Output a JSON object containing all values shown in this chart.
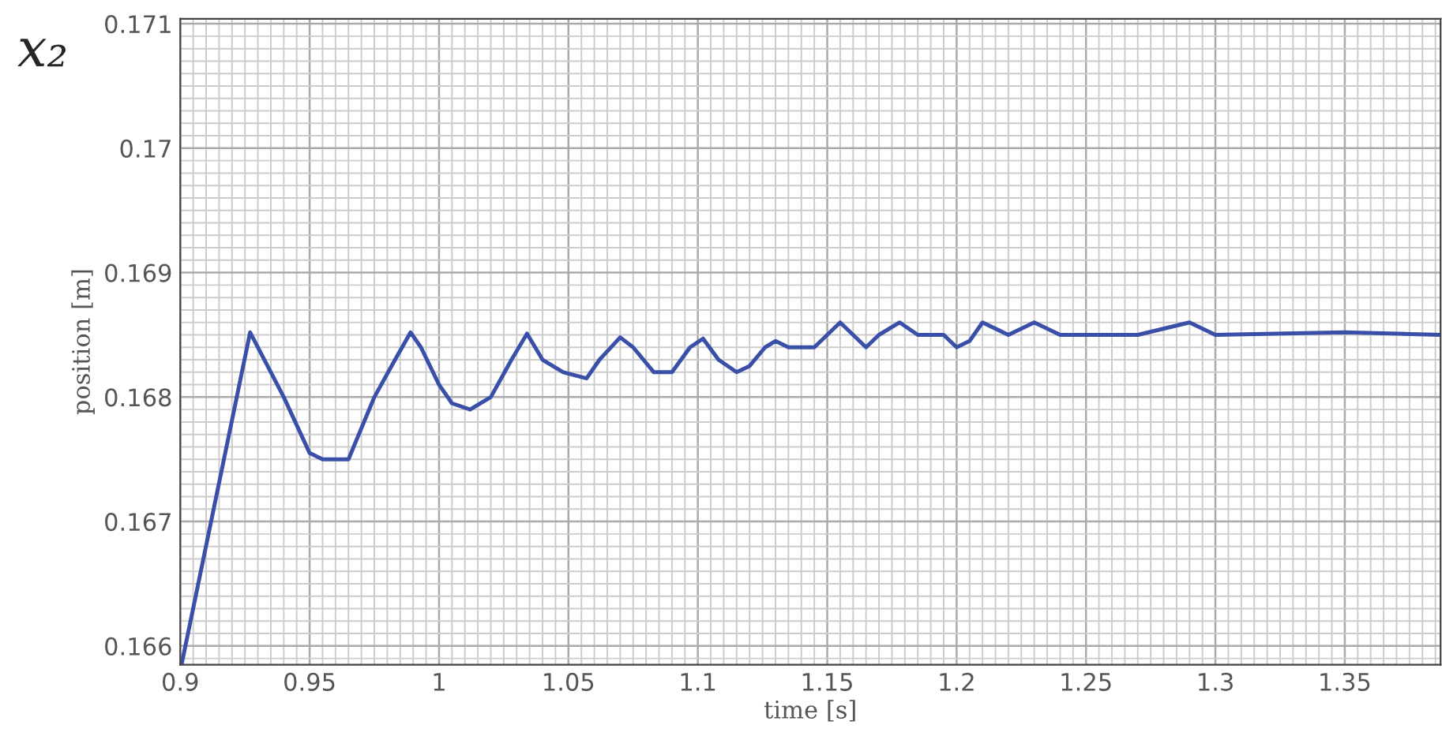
{
  "chart_data": {
    "type": "line",
    "title": "x₂",
    "xlabel": "time [s]",
    "ylabel": "position [m]",
    "x": [
      0.9005,
      0.927,
      0.94,
      0.95,
      0.955,
      0.965,
      0.975,
      0.983,
      0.989,
      0.993,
      1.0,
      1.005,
      1.012,
      1.02,
      1.028,
      1.034,
      1.04,
      1.048,
      1.057,
      1.062,
      1.07,
      1.075,
      1.083,
      1.09,
      1.097,
      1.102,
      1.108,
      1.115,
      1.12,
      1.126,
      1.13,
      1.135,
      1.145,
      1.15,
      1.155,
      1.16,
      1.165,
      1.17,
      1.178,
      1.185,
      1.195,
      1.2,
      1.205,
      1.21,
      1.22,
      1.23,
      1.24,
      1.25,
      1.26,
      1.27,
      1.29,
      1.3,
      1.35,
      1.387
    ],
    "series": [
      {
        "color": "#3a50a8",
        "values": [
          0.16585,
          0.16852,
          0.168,
          0.16755,
          0.1675,
          0.1675,
          0.168,
          0.1683,
          0.16852,
          0.1684,
          0.1681,
          0.16795,
          0.1679,
          0.168,
          0.1683,
          0.16851,
          0.1683,
          0.1682,
          0.16815,
          0.1683,
          0.16848,
          0.1684,
          0.1682,
          0.1682,
          0.1684,
          0.16847,
          0.1683,
          0.1682,
          0.16825,
          0.1684,
          0.16845,
          0.1684,
          0.1684,
          0.1685,
          0.1686,
          0.1685,
          0.1684,
          0.1685,
          0.1686,
          0.1685,
          0.1685,
          0.1684,
          0.16845,
          0.1686,
          0.1685,
          0.1686,
          0.1685,
          0.1685,
          0.1685,
          0.1685,
          0.1686,
          0.1685,
          0.16852,
          0.1685
        ]
      }
    ],
    "xlim": [
      0.9,
      1.387
    ],
    "ylim": [
      0.16585,
      0.17104
    ],
    "xticks": [
      0.9,
      0.95,
      1,
      1.05,
      1.1,
      1.15,
      1.2,
      1.25,
      1.3,
      1.35
    ],
    "yticks": [
      0.166,
      0.167,
      0.168,
      0.169,
      0.17,
      0.171
    ],
    "grid": true,
    "line_style": "solid",
    "marker": "none"
  }
}
